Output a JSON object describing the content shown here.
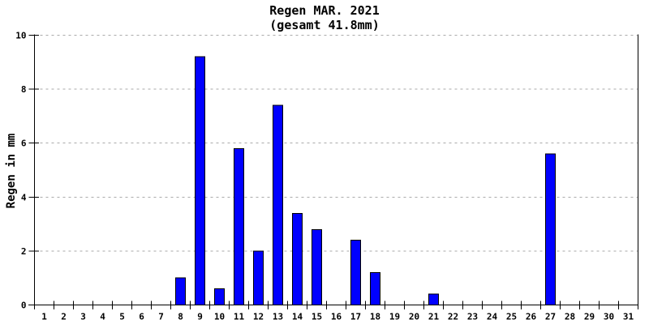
{
  "window": {
    "background": "#ffffff"
  },
  "chart_data": {
    "type": "bar",
    "title": "Regen MAR. 2021",
    "subtitle": "(gesamt 41.8mm)",
    "ylabel": "Regen in mm",
    "xlabel": "",
    "total_mm_label": "41.8",
    "categories": [
      "1",
      "2",
      "3",
      "4",
      "5",
      "6",
      "7",
      "8",
      "9",
      "10",
      "11",
      "12",
      "13",
      "14",
      "15",
      "16",
      "17",
      "18",
      "19",
      "20",
      "21",
      "22",
      "23",
      "24",
      "25",
      "26",
      "27",
      "28",
      "29",
      "30",
      "31"
    ],
    "values": [
      0,
      0,
      0,
      0,
      0,
      0,
      0,
      1.0,
      9.2,
      0.6,
      5.8,
      2.0,
      7.4,
      3.4,
      2.8,
      0,
      2.4,
      1.2,
      0,
      0,
      0.4,
      0,
      0,
      0,
      0,
      0,
      5.6,
      0,
      0,
      0,
      0
    ],
    "ylim": [
      0,
      10
    ],
    "yticks": [
      0,
      2,
      4,
      6,
      8,
      10
    ],
    "grid": {
      "horizontal": true,
      "style": "dashed",
      "at_yticks_above_zero": true
    },
    "legend": "none",
    "colors": {
      "bar_fill": "#0000ff",
      "bar_stroke": "#000000",
      "grid": "#aaaaaa",
      "axis": "#000000",
      "text": "#000000",
      "background": "#ffffff"
    }
  }
}
